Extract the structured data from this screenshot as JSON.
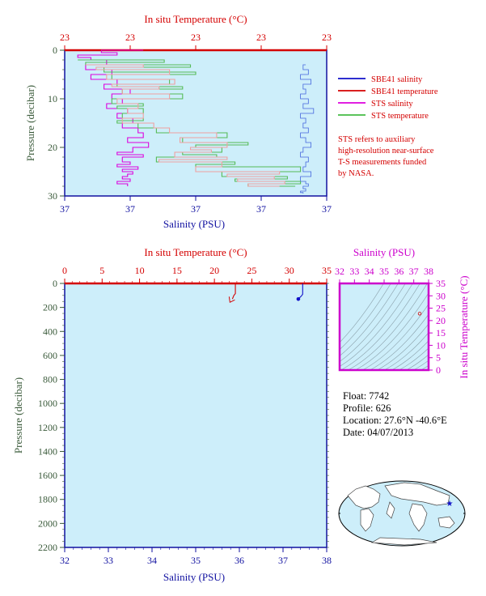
{
  "chart_data": [
    {
      "type": "line",
      "panel": "top-profile",
      "title": "",
      "top_axis_label": "In situ Temperature (°C)",
      "top_ticks": [
        "23",
        "23",
        "23",
        "23",
        "23"
      ],
      "bottom_axis_label": "Salinity (PSU)",
      "bottom_ticks": [
        "37",
        "37",
        "37",
        "37",
        "37"
      ],
      "ylabel": "Pressure (decibar)",
      "y_ticks": [
        "0",
        "10",
        "20",
        "30"
      ],
      "ylim": [
        30,
        0
      ],
      "temp_scale": [
        0,
        1
      ],
      "sal_scale": [
        0,
        1
      ],
      "grid": false,
      "legend_position": "right",
      "legend": [
        {
          "label": "SBE41 salinity",
          "color": "#1010c8"
        },
        {
          "label": "SBE41 temperature",
          "color": "#d40000"
        },
        {
          "label": "STS salinity",
          "color": "#dd00dd"
        },
        {
          "label": "STS temperature",
          "color": "#44bb44"
        }
      ],
      "note_lines": [
        "STS refers to auxiliary",
        "high-resolution near-surface",
        "T-S measurements funded",
        "by NASA."
      ],
      "series": [
        {
          "name": "SBE41 salinity",
          "color": "#4466dd",
          "x": [
            0.92,
            0.91,
            0.93,
            0.9,
            0.94,
            0.91,
            0.92,
            0.9,
            0.93,
            0.91,
            0.95,
            0.9,
            0.92,
            0.91,
            0.93,
            0.9,
            0.92,
            0.94,
            0.91,
            0.9,
            0.93,
            0.92,
            0.91,
            0.94,
            0.9,
            0.92,
            0.93,
            0.91,
            0.92,
            0.9,
            0.91
          ],
          "y": [
            3,
            4,
            5,
            6,
            7,
            8,
            9,
            10,
            11,
            12,
            13,
            14,
            15,
            16,
            17,
            18,
            19,
            20,
            21,
            22,
            23,
            24,
            25,
            26,
            27,
            27.5,
            28,
            28.5,
            29,
            29.3,
            29.5
          ]
        },
        {
          "name": "STS salinity",
          "color": "#dd00dd",
          "x": [
            0.3,
            0.14,
            0.2,
            0.05,
            0.1,
            0.16,
            0.08,
            0.18,
            0.1,
            0.2,
            0.15,
            0.25,
            0.18,
            0.22,
            0.16,
            0.24,
            0.2,
            0.26,
            0.22,
            0.28,
            0.3,
            0.24,
            0.32,
            0.26,
            0.2,
            0.3,
            0.22,
            0.25,
            0.2,
            0.28,
            0.22,
            0.26,
            0.24,
            0.22,
            0.25,
            0.2,
            0.24
          ],
          "y": [
            0,
            0.5,
            1,
            1.5,
            2,
            3,
            4,
            5,
            6,
            7,
            8,
            9,
            10,
            11,
            12,
            13,
            14,
            15,
            16,
            17,
            18,
            19,
            20,
            21,
            21.5,
            22,
            23,
            23.5,
            24,
            24.5,
            25,
            25.5,
            26,
            26.5,
            27,
            27.5,
            28
          ]
        },
        {
          "name": "STS temperature",
          "color": "#55bb55",
          "x": [
            0.05,
            0.38,
            0.08,
            0.48,
            0.15,
            0.5,
            0.18,
            0.4,
            0.2,
            0.45,
            0.22,
            0.45,
            0.18,
            0.3,
            0.2,
            0.3,
            0.22,
            0.3,
            0.2,
            0.28,
            0.35,
            0.62,
            0.45,
            0.7,
            0.5,
            0.6,
            0.45,
            0.58,
            0.35,
            0.65,
            0.5,
            0.9,
            0.6,
            0.85,
            0.65,
            0.9,
            0.7,
            0.88
          ],
          "y": [
            2,
            2.5,
            3,
            3.5,
            4.5,
            5,
            6,
            7,
            7.5,
            8,
            9,
            10,
            11,
            11.5,
            12,
            13,
            14,
            14.5,
            15,
            16,
            17,
            18,
            19,
            19.5,
            20,
            21,
            21.5,
            22,
            23,
            23.5,
            24,
            25,
            26,
            26.5,
            27,
            27.5,
            28,
            28
          ]
        },
        {
          "name": "SBE41 temperature",
          "color": "#f0a0a0",
          "x": [
            0.08,
            0.3,
            0.12,
            0.4,
            0.16,
            0.42,
            0.18,
            0.36,
            0.22,
            0.4,
            0.2,
            0.28,
            0.24,
            0.3,
            0.22,
            0.34,
            0.4,
            0.58,
            0.44,
            0.62,
            0.48,
            0.56,
            0.42,
            0.62,
            0.36,
            0.6,
            0.5,
            0.82,
            0.62,
            0.8,
            0.66,
            0.84,
            0.7,
            0.82
          ],
          "y": [
            3,
            3.5,
            4,
            5,
            6,
            7,
            7.5,
            8,
            9,
            10,
            11,
            12,
            13,
            14,
            15,
            16,
            17,
            18,
            19,
            20,
            20.5,
            21,
            22,
            22.5,
            23,
            24,
            25,
            25.5,
            26,
            26.5,
            27,
            27.5,
            28,
            28
          ]
        }
      ]
    },
    {
      "type": "line",
      "panel": "bottom-profile",
      "title": "",
      "top_axis_label": "In situ Temperature (°C)",
      "top_ticks": [
        "0",
        "5",
        "10",
        "15",
        "20",
        "25",
        "30",
        "35"
      ],
      "bottom_axis_label": "Salinity (PSU)",
      "bottom_ticks": [
        "32",
        "33",
        "34",
        "35",
        "36",
        "37",
        "38"
      ],
      "ylabel": "Pressure (decibar)",
      "y_ticks": [
        "0",
        "200",
        "400",
        "600",
        "800",
        "1000",
        "1200",
        "1400",
        "1600",
        "1800",
        "2000",
        "2200"
      ],
      "ylim": [
        2200,
        0
      ],
      "xlim_temp": [
        0,
        35
      ],
      "xlim_sal": [
        32,
        38
      ],
      "grid": false,
      "series": [
        {
          "name": "SBE41 temperature",
          "color": "#d40000",
          "x": [
            22.8,
            22.8,
            22.6,
            22.4
          ],
          "y": [
            0,
            85,
            100,
            130
          ]
        },
        {
          "name": "SBE41 salinity",
          "color": "#1010c8",
          "x": [
            37.45,
            37.45,
            37.42,
            37.35
          ],
          "y": [
            0,
            90,
            105,
            130
          ]
        }
      ]
    },
    {
      "type": "scatter",
      "panel": "ts-diagram",
      "title": "",
      "top_axis_label": "Salinity (PSU)",
      "x_ticks": [
        "32",
        "33",
        "34",
        "35",
        "36",
        "37",
        "38"
      ],
      "xlim": [
        32,
        38
      ],
      "right_axis_label": "In situ Temperature (°C)",
      "y_ticks": [
        "0",
        "5",
        "10",
        "15",
        "20",
        "25",
        "30",
        "35"
      ],
      "ylim": [
        0,
        35
      ],
      "grid": false,
      "points": [
        {
          "x": 37.4,
          "y": 22.8
        }
      ]
    }
  ],
  "float_info": {
    "float": "Float:  7742",
    "profile": "Profile:  626",
    "location": "Location:  27.6°N  -40.6°E",
    "date": "Date:  04/07/2013"
  },
  "map": {
    "marker_lat": 27.6,
    "marker_lon": -40.6,
    "marker_symbol": "★"
  },
  "footer": "",
  "colors": {
    "plot_bg": "#cdeefa",
    "temp_axis": "#d40000",
    "sal_axis": "#1010a0",
    "ts_axis": "#cc00cc",
    "pressure_axis": "#3a5a3a"
  }
}
